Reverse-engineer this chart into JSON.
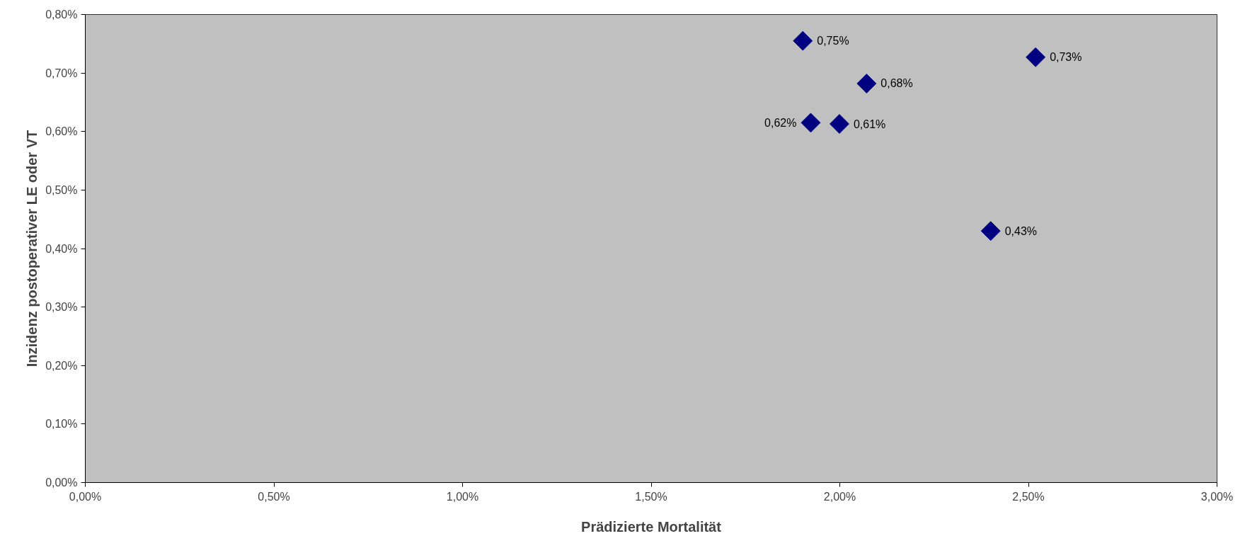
{
  "chart_data": {
    "type": "scatter",
    "xlabel": "Prädizierte Mortalität",
    "ylabel": "Inzidenz postoperativer LE oder VT",
    "x": [
      1.902,
      2.519,
      2.071,
      1.923,
      1.999,
      2.4
    ],
    "series": [
      {
        "color": "#000080",
        "values": [
          0.755,
          0.727,
          0.682,
          0.615,
          0.613,
          0.43
        ],
        "value_labels": [
          "0,75%",
          "0,73%",
          "0,68%",
          "0,62%",
          "0,61%",
          "0,43%"
        ]
      }
    ],
    "marker": "diamond",
    "xlim": [
      0,
      3
    ],
    "ylim": [
      0,
      0.8
    ],
    "xticks": [
      {
        "value": 0,
        "label": "0,00%"
      },
      {
        "value": 0.5,
        "label": "0,50%"
      },
      {
        "value": 1,
        "label": "1,00%"
      },
      {
        "value": 1.5,
        "label": "1,50%"
      },
      {
        "value": 2,
        "label": "2,00%"
      },
      {
        "value": 2.5,
        "label": "2,50%"
      },
      {
        "value": 3,
        "label": "3,00%"
      }
    ],
    "yticks": [
      {
        "value": 0,
        "label": "0,00%"
      },
      {
        "value": 0.1,
        "label": "0,10%"
      },
      {
        "value": 0.2,
        "label": "0,20%"
      },
      {
        "value": 0.3,
        "label": "0,30%"
      },
      {
        "value": 0.4,
        "label": "0,40%"
      },
      {
        "value": 0.5,
        "label": "0,50%"
      },
      {
        "value": 0.6,
        "label": "0,60%"
      },
      {
        "value": 0.7,
        "label": "0,70%"
      },
      {
        "value": 0.8,
        "label": "0,80%"
      }
    ],
    "grid": false
  }
}
